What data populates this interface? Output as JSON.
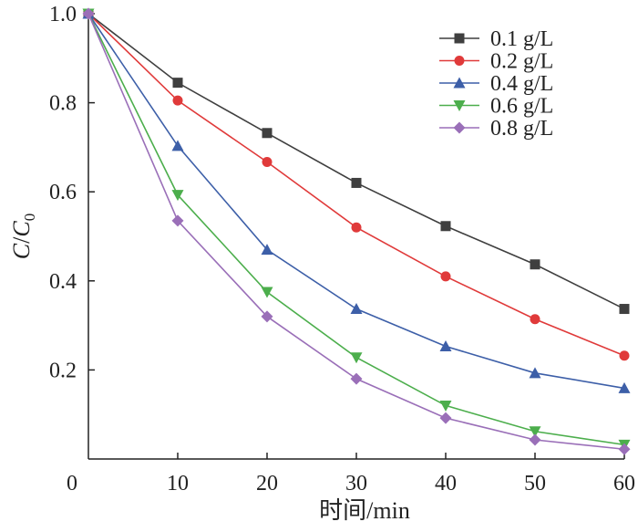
{
  "chart_data": {
    "type": "line",
    "xlabel": "时间/min",
    "ylabel_main": "C",
    "ylabel_sep": "/",
    "ylabel_denom": "C",
    "ylabel_sub": "0",
    "xlim": [
      0,
      60
    ],
    "ylim": [
      0,
      1.0
    ],
    "x_ticks": [
      0,
      10,
      20,
      30,
      40,
      50,
      60
    ],
    "y_ticks": [
      0.2,
      0.4,
      0.6,
      0.8,
      1.0
    ],
    "x_tick_labels": [
      "0",
      "10",
      "20",
      "30",
      "40",
      "50",
      "60"
    ],
    "y_tick_labels": [
      "0.2",
      "0.4",
      "0.6",
      "0.8",
      "1.0"
    ],
    "grid": false,
    "legend_position": "top-right",
    "x": [
      0,
      10,
      20,
      30,
      40,
      50,
      60
    ],
    "series": [
      {
        "name": "0.1 g/L",
        "color": "#3f3f3f",
        "marker": "square",
        "values": [
          1.0,
          0.845,
          0.732,
          0.62,
          0.523,
          0.437,
          0.337
        ]
      },
      {
        "name": "0.2 g/L",
        "color": "#e03a3a",
        "marker": "circle",
        "values": [
          1.0,
          0.805,
          0.667,
          0.52,
          0.41,
          0.314,
          0.232
        ]
      },
      {
        "name": "0.4 g/L",
        "color": "#3d5fa8",
        "marker": "triangle-up",
        "values": [
          1.0,
          0.703,
          0.47,
          0.337,
          0.253,
          0.193,
          0.159
        ]
      },
      {
        "name": "0.6 g/L",
        "color": "#4cae4c",
        "marker": "triangle-down",
        "values": [
          1.0,
          0.593,
          0.375,
          0.228,
          0.12,
          0.062,
          0.032
        ]
      },
      {
        "name": "0.8 g/L",
        "color": "#9a6fb8",
        "marker": "diamond",
        "values": [
          1.0,
          0.535,
          0.32,
          0.18,
          0.092,
          0.043,
          0.022
        ]
      }
    ]
  }
}
